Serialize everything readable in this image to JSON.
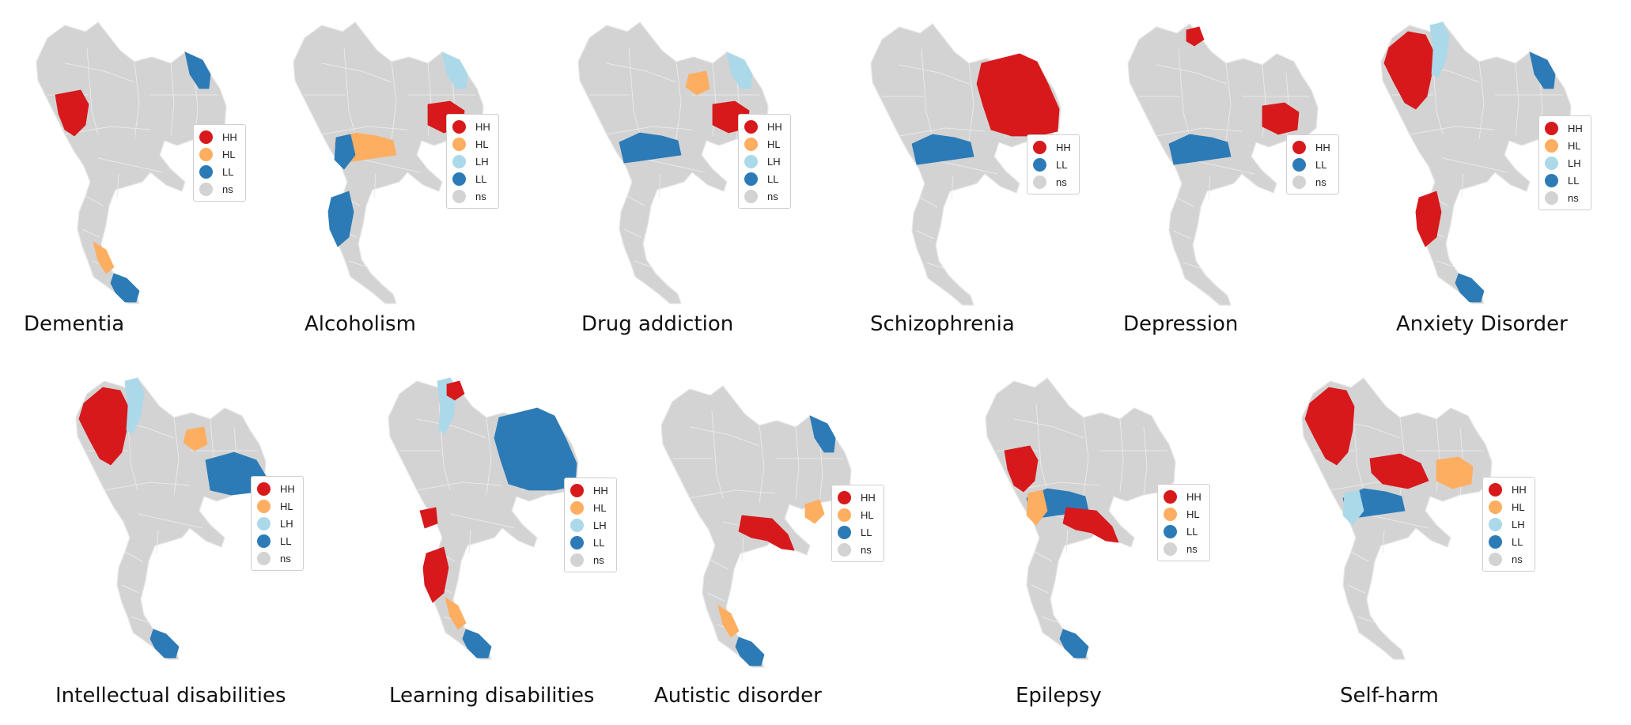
{
  "categories": {
    "HH": {
      "label": "HH",
      "color": "#d7191c"
    },
    "HL": {
      "label": "HL",
      "color": "#fdae61"
    },
    "LH": {
      "label": "LH",
      "color": "#abd9e9"
    },
    "LL": {
      "label": "LL",
      "color": "#2c7bb6"
    },
    "ns": {
      "label": "ns",
      "color": "#d3d3d3"
    }
  },
  "panels": [
    {
      "id": "dementia",
      "title": "Dementia",
      "legend": [
        "HH",
        "HL",
        "LL",
        "ns"
      ],
      "clusters": [
        {
          "region": "north-west",
          "cat": "HH"
        },
        {
          "region": "north-east-corner",
          "cat": "LL"
        },
        {
          "region": "south-mid",
          "cat": "HL"
        },
        {
          "region": "south-tip",
          "cat": "LL"
        }
      ]
    },
    {
      "id": "alcoholism",
      "title": "Alcoholism",
      "legend": [
        "HH",
        "HL",
        "LH",
        "LL",
        "ns"
      ],
      "clusters": [
        {
          "region": "north-east-corner",
          "cat": "LH"
        },
        {
          "region": "east-center",
          "cat": "HH"
        },
        {
          "region": "central",
          "cat": "HL"
        },
        {
          "region": "central-west",
          "cat": "LL"
        },
        {
          "region": "south-upper",
          "cat": "LL"
        }
      ]
    },
    {
      "id": "drug-addiction",
      "title": "Drug addiction",
      "legend": [
        "HH",
        "HL",
        "LH",
        "LL",
        "ns"
      ],
      "clusters": [
        {
          "region": "north-east-corner",
          "cat": "LH"
        },
        {
          "region": "north-east-inner",
          "cat": "HL"
        },
        {
          "region": "east-center",
          "cat": "HH"
        },
        {
          "region": "central",
          "cat": "LL"
        }
      ]
    },
    {
      "id": "schizophrenia",
      "title": "Schizophrenia",
      "legend": [
        "HH",
        "LL",
        "ns"
      ],
      "clusters": [
        {
          "region": "north-east-block",
          "cat": "HH"
        },
        {
          "region": "central",
          "cat": "LL"
        }
      ]
    },
    {
      "id": "depression",
      "title": "Depression",
      "legend": [
        "HH",
        "LL",
        "ns"
      ],
      "clusters": [
        {
          "region": "north-tip",
          "cat": "HH"
        },
        {
          "region": "east-center",
          "cat": "HH"
        },
        {
          "region": "central",
          "cat": "LL"
        }
      ]
    },
    {
      "id": "anxiety-disorder",
      "title": "Anxiety Disorder",
      "legend": [
        "HH",
        "HL",
        "LH",
        "LL",
        "ns"
      ],
      "clusters": [
        {
          "region": "north-west-large",
          "cat": "HH"
        },
        {
          "region": "north-strip",
          "cat": "LH"
        },
        {
          "region": "north-east-corner",
          "cat": "LL"
        },
        {
          "region": "south-upper",
          "cat": "HH"
        },
        {
          "region": "south-tip",
          "cat": "LL"
        }
      ]
    },
    {
      "id": "intellectual-disabilities",
      "title": "Intellectual disabilities",
      "legend": [
        "HH",
        "HL",
        "LH",
        "LL",
        "ns"
      ],
      "clusters": [
        {
          "region": "north-west-large",
          "cat": "HH"
        },
        {
          "region": "north-strip",
          "cat": "LH"
        },
        {
          "region": "north-east-inner",
          "cat": "HL"
        },
        {
          "region": "east-block",
          "cat": "LL"
        },
        {
          "region": "south-tip",
          "cat": "LL"
        }
      ]
    },
    {
      "id": "learning-disabilities",
      "title": "Learning disabilities",
      "legend": [
        "HH",
        "HL",
        "LH",
        "LL",
        "ns"
      ],
      "clusters": [
        {
          "region": "north-strip",
          "cat": "LH"
        },
        {
          "region": "north-tip",
          "cat": "HH"
        },
        {
          "region": "north-east-block",
          "cat": "LL"
        },
        {
          "region": "west-center",
          "cat": "HH"
        },
        {
          "region": "south-upper",
          "cat": "HH"
        },
        {
          "region": "south-mid",
          "cat": "HL"
        },
        {
          "region": "south-tip",
          "cat": "LL"
        }
      ]
    },
    {
      "id": "autistic-disorder",
      "title": "Autistic disorder",
      "legend": [
        "HH",
        "HL",
        "LL",
        "ns"
      ],
      "clusters": [
        {
          "region": "north-east-corner",
          "cat": "LL"
        },
        {
          "region": "east-block-small",
          "cat": "HL"
        },
        {
          "region": "south-east",
          "cat": "HH"
        },
        {
          "region": "south-mid",
          "cat": "HL"
        },
        {
          "region": "south-tip",
          "cat": "LL"
        }
      ]
    },
    {
      "id": "epilepsy",
      "title": "Epilepsy",
      "legend": [
        "HH",
        "HL",
        "LL",
        "ns"
      ],
      "clusters": [
        {
          "region": "north-west",
          "cat": "HH"
        },
        {
          "region": "central",
          "cat": "LL"
        },
        {
          "region": "central-west",
          "cat": "HL"
        },
        {
          "region": "south-east",
          "cat": "HH"
        },
        {
          "region": "south-tip",
          "cat": "LL"
        }
      ]
    },
    {
      "id": "self-harm",
      "title": "Self-harm",
      "legend": [
        "HH",
        "HL",
        "LH",
        "LL",
        "ns"
      ],
      "clusters": [
        {
          "region": "north-west-large",
          "cat": "HH"
        },
        {
          "region": "central-north",
          "cat": "HH"
        },
        {
          "region": "central",
          "cat": "LL"
        },
        {
          "region": "central-west",
          "cat": "LH"
        },
        {
          "region": "east-center",
          "cat": "HL"
        }
      ]
    }
  ]
}
